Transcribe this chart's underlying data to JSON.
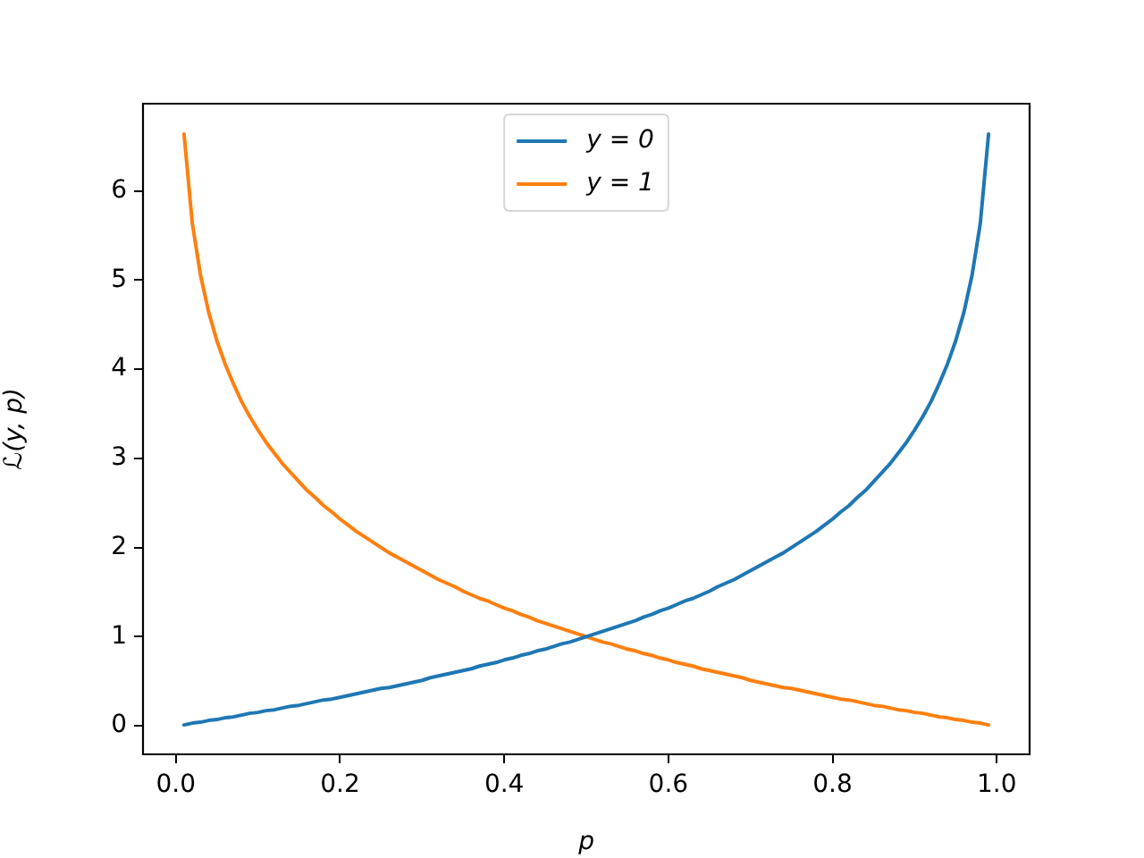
{
  "chart_data": {
    "type": "line",
    "xlabel": "p",
    "ylabel": "ℒ(y, p)",
    "legend": "top",
    "x": [
      0.01,
      0.02,
      0.03,
      0.04,
      0.05,
      0.06,
      0.07,
      0.08,
      0.09,
      0.1,
      0.11,
      0.12,
      0.13,
      0.14,
      0.15,
      0.16,
      0.17,
      0.18,
      0.19,
      0.2,
      0.21,
      0.22,
      0.23,
      0.24,
      0.25,
      0.26,
      0.27,
      0.28,
      0.29,
      0.3,
      0.31,
      0.32,
      0.33,
      0.34,
      0.35,
      0.36,
      0.37,
      0.38,
      0.39,
      0.4,
      0.41,
      0.42,
      0.43,
      0.44,
      0.45,
      0.46,
      0.47,
      0.48,
      0.49,
      0.5,
      0.51,
      0.52,
      0.53,
      0.54,
      0.55,
      0.56,
      0.57,
      0.58,
      0.59,
      0.6,
      0.61,
      0.62,
      0.63,
      0.64,
      0.65,
      0.66,
      0.67,
      0.68,
      0.69,
      0.7,
      0.71,
      0.72,
      0.73,
      0.74,
      0.75,
      0.76,
      0.77,
      0.78,
      0.79,
      0.8,
      0.81,
      0.82,
      0.83,
      0.84,
      0.85,
      0.86,
      0.87,
      0.88,
      0.89,
      0.9,
      0.91,
      0.92,
      0.93,
      0.94,
      0.95,
      0.96,
      0.97,
      0.98,
      0.99
    ],
    "series": [
      {
        "name": "y = 0",
        "color": "#1f77b4",
        "values": [
          0.01,
          0.03,
          0.04,
          0.06,
          0.07,
          0.09,
          0.1,
          0.12,
          0.14,
          0.15,
          0.17,
          0.18,
          0.2,
          0.22,
          0.23,
          0.25,
          0.27,
          0.29,
          0.3,
          0.32,
          0.34,
          0.36,
          0.38,
          0.4,
          0.42,
          0.43,
          0.45,
          0.47,
          0.49,
          0.51,
          0.54,
          0.56,
          0.58,
          0.6,
          0.62,
          0.64,
          0.67,
          0.69,
          0.71,
          0.74,
          0.76,
          0.79,
          0.81,
          0.84,
          0.86,
          0.89,
          0.92,
          0.94,
          0.97,
          1.0,
          1.03,
          1.06,
          1.09,
          1.12,
          1.15,
          1.18,
          1.22,
          1.25,
          1.29,
          1.32,
          1.36,
          1.4,
          1.43,
          1.47,
          1.51,
          1.56,
          1.6,
          1.64,
          1.69,
          1.74,
          1.79,
          1.84,
          1.89,
          1.94,
          2.0,
          2.06,
          2.12,
          2.18,
          2.25,
          2.32,
          2.4,
          2.47,
          2.56,
          2.64,
          2.74,
          2.84,
          2.94,
          3.06,
          3.18,
          3.32,
          3.47,
          3.64,
          3.84,
          4.06,
          4.32,
          4.64,
          5.06,
          5.64,
          6.64
        ]
      },
      {
        "name": "y = 1",
        "color": "#ff7f0e",
        "values": [
          6.64,
          5.64,
          5.06,
          4.64,
          4.32,
          4.06,
          3.84,
          3.64,
          3.47,
          3.32,
          3.18,
          3.06,
          2.94,
          2.84,
          2.74,
          2.64,
          2.56,
          2.47,
          2.4,
          2.32,
          2.25,
          2.18,
          2.12,
          2.06,
          2.0,
          1.94,
          1.89,
          1.84,
          1.79,
          1.74,
          1.69,
          1.64,
          1.6,
          1.56,
          1.51,
          1.47,
          1.43,
          1.4,
          1.36,
          1.32,
          1.29,
          1.25,
          1.22,
          1.18,
          1.15,
          1.12,
          1.09,
          1.06,
          1.03,
          1.0,
          0.97,
          0.94,
          0.92,
          0.89,
          0.86,
          0.84,
          0.81,
          0.79,
          0.76,
          0.74,
          0.71,
          0.69,
          0.67,
          0.64,
          0.62,
          0.6,
          0.58,
          0.56,
          0.54,
          0.51,
          0.49,
          0.47,
          0.45,
          0.43,
          0.42,
          0.4,
          0.38,
          0.36,
          0.34,
          0.32,
          0.3,
          0.29,
          0.27,
          0.25,
          0.23,
          0.22,
          0.2,
          0.18,
          0.17,
          0.15,
          0.14,
          0.12,
          0.1,
          0.09,
          0.07,
          0.06,
          0.04,
          0.03,
          0.01
        ]
      }
    ],
    "xlim": [
      -0.04,
      1.04
    ],
    "ylim": [
      -0.32,
      6.98
    ],
    "xticks": [
      {
        "value": 0,
        "label": "0.0"
      },
      {
        "value": 0.2,
        "label": "0.2"
      },
      {
        "value": 0.4,
        "label": "0.4"
      },
      {
        "value": 0.6,
        "label": "0.6"
      },
      {
        "value": 0.8,
        "label": "0.8"
      },
      {
        "value": 1,
        "label": "1.0"
      }
    ],
    "yticks": [
      0,
      1,
      2,
      3,
      4,
      5,
      6
    ]
  }
}
